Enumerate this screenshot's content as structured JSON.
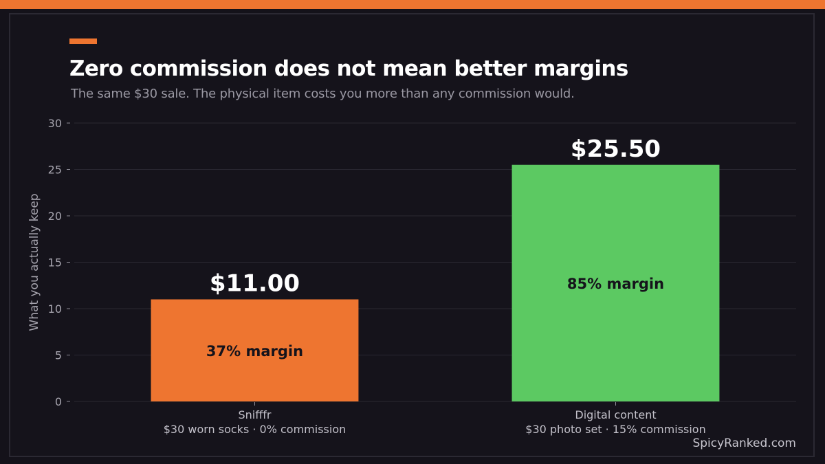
{
  "header": {
    "title": "Zero commission does not mean better margins",
    "subtitle": "The same $30 sale. The physical item costs you more than any commission would."
  },
  "footer": {
    "watermark": "SpicyRanked.com"
  },
  "colors": {
    "background": "#14121a",
    "accent": "#ee7530",
    "bar_snifffr": "#ee7530",
    "bar_digital": "#5cc962"
  },
  "chart_data": {
    "type": "bar",
    "title": "Zero commission does not mean better margins",
    "subtitle": "The same $30 sale. The physical item costs you more than any commission would.",
    "xlabel": "",
    "ylabel": "What you actually keep",
    "ylim": [
      0,
      30
    ],
    "yticks": [
      0,
      5,
      10,
      15,
      20,
      25,
      30
    ],
    "grid": true,
    "legend": "none",
    "categories": [
      {
        "name": "Snifffr",
        "detail": "$30 worn socks  ·  0% commission"
      },
      {
        "name": "Digital content",
        "detail": "$30 photo set  ·  15% commission"
      }
    ],
    "values": [
      11.0,
      25.5
    ],
    "value_labels": [
      "$11.00",
      "$25.50"
    ],
    "bar_labels": [
      "37% margin",
      "85% margin"
    ],
    "bar_colors": [
      "#ee7530",
      "#5cc962"
    ]
  }
}
